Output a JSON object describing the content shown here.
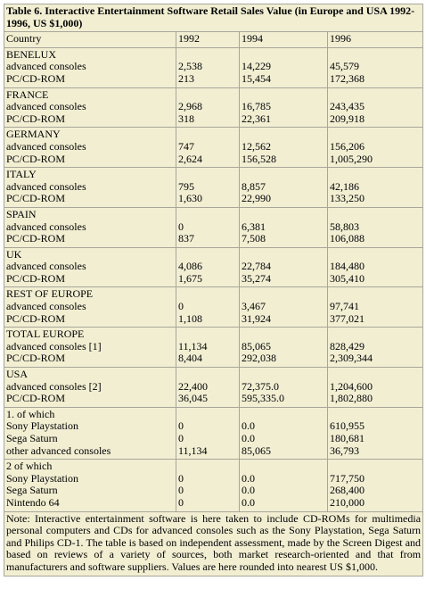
{
  "title": "Table 6. Interactive Entertainment Software Retail Sales Value (in Europe and USA 1992-1996, US $1,000)",
  "header": [
    "Country",
    "1992",
    "1994",
    "1996"
  ],
  "groups": [
    {
      "name": "BENELUX",
      "rows": [
        {
          "label": "advanced consoles",
          "values": [
            "2,538",
            "14,229",
            "45,579"
          ]
        },
        {
          "label": "PC/CD-ROM",
          "values": [
            "213",
            "15,454",
            "172,368"
          ]
        }
      ]
    },
    {
      "name": "FRANCE",
      "rows": [
        {
          "label": "advanced consoles",
          "values": [
            "2,968",
            "16,785",
            "243,435"
          ]
        },
        {
          "label": "PC/CD-ROM",
          "values": [
            "318",
            "22,361",
            "209,918"
          ]
        }
      ]
    },
    {
      "name": "GERMANY",
      "rows": [
        {
          "label": "advanced consoles",
          "values": [
            "747",
            "12,562",
            "156,206"
          ]
        },
        {
          "label": "PC/CD-ROM",
          "values": [
            "2,624",
            "156,528",
            "1,005,290"
          ]
        }
      ]
    },
    {
      "name": "ITALY",
      "rows": [
        {
          "label": "advanced consoles",
          "values": [
            "795",
            "8,857",
            "42,186"
          ]
        },
        {
          "label": "PC/CD-ROM",
          "values": [
            "1,630",
            "22,990",
            "133,250"
          ]
        }
      ]
    },
    {
      "name": "SPAIN",
      "rows": [
        {
          "label": "advanced consoles",
          "values": [
            "0",
            "6,381",
            "58,803"
          ]
        },
        {
          "label": "PC/CD-ROM",
          "values": [
            "837",
            "7,508",
            "106,088"
          ]
        }
      ]
    },
    {
      "name": "UK",
      "rows": [
        {
          "label": "advanced consoles",
          "values": [
            "4,086",
            "22,784",
            "184,480"
          ]
        },
        {
          "label": "PC/CD-ROM",
          "values": [
            "1,675",
            "35,274",
            "305,410"
          ]
        }
      ]
    },
    {
      "name": "REST OF EUROPE",
      "rows": [
        {
          "label": "advanced consoles",
          "values": [
            "0",
            "3,467",
            "97,741"
          ]
        },
        {
          "label": "PC/CD-ROM",
          "values": [
            "1,108",
            "31,924",
            "377,021"
          ]
        }
      ]
    },
    {
      "name": "TOTAL EUROPE",
      "rows": [
        {
          "label": "advanced consoles [1]",
          "values": [
            "11,134",
            "85,065",
            "828,429"
          ]
        },
        {
          "label": "PC/CD-ROM",
          "values": [
            "8,404",
            "292,038",
            "2,309,344"
          ]
        }
      ]
    },
    {
      "name": "USA",
      "rows": [
        {
          "label": "advanced consoles [2]",
          "values": [
            "22,400",
            "72,375.0",
            "1,204,600"
          ]
        },
        {
          "label": "PC/CD-ROM",
          "values": [
            "36,045",
            "595,335.0",
            "1,802,880"
          ]
        }
      ]
    },
    {
      "name": "1. of which",
      "rows": [
        {
          "label": "Sony Playstation",
          "values": [
            "0",
            "0.0",
            "610,955"
          ]
        },
        {
          "label": "Sega Saturn",
          "values": [
            "0",
            "0.0",
            "180,681"
          ]
        },
        {
          "label": "other advanced consoles",
          "values": [
            "11,134",
            "85,065",
            "36,793"
          ]
        }
      ]
    },
    {
      "name": "2 of which",
      "rows": [
        {
          "label": "Sony Playstation",
          "values": [
            "0",
            "0.0",
            "717,750"
          ]
        },
        {
          "label": "Sega Saturn",
          "values": [
            "0",
            "0.0",
            "268,400"
          ]
        },
        {
          "label": "Nintendo 64",
          "values": [
            "0",
            "0.0",
            "210,000"
          ]
        }
      ]
    }
  ],
  "note": "Note: Interactive entertainment software is here taken to include CD-ROMs for multimedia personal computers and CDs for advanced consoles such as the Sony Playstation, Sega Saturn and Philips CD-1. The table is based on independent assessment, made by the Screen Digest and based on reviews of a variety of sources, both market research-oriented and that from manufacturers and software suppliers. Values are here rounded into nearest US $1,000."
}
